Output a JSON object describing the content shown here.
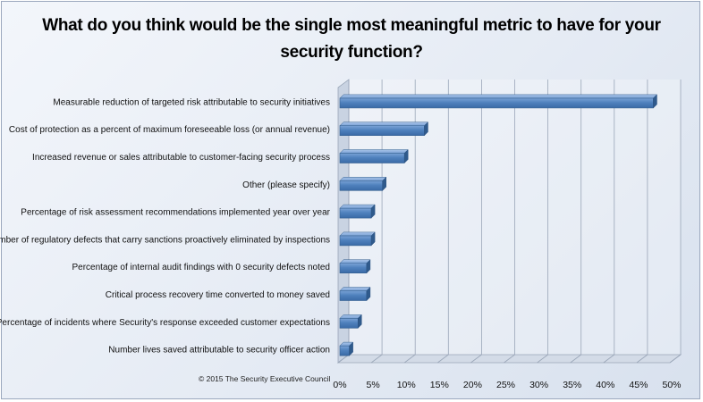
{
  "chart_data": {
    "type": "bar",
    "orientation": "horizontal",
    "title": "What do you think would be the single most meaningful metric to have for your security function?",
    "categories": [
      "Measurable reduction of targeted risk attributable to security initiatives",
      "Cost of protection as a percent of maximum foreseeable loss (or annual revenue)",
      "Increased revenue or sales attributable to customer-facing security process",
      "Other (please specify)",
      "Percentage of risk assessment recommendations implemented year over year",
      "Number of regulatory defects that carry sanctions proactively eliminated by inspections",
      "Percentage of internal audit findings with 0 security defects noted",
      "Critical process recovery time converted to money saved",
      "Percentage of incidents where Security's response exceeded customer expectations",
      "Number lives saved attributable to security officer action"
    ],
    "values": [
      47.5,
      13,
      10,
      6.7,
      5,
      5,
      4.3,
      4.3,
      3,
      1.7
    ],
    "xlim": [
      0,
      50
    ],
    "xticks": [
      0,
      5,
      10,
      15,
      20,
      25,
      30,
      35,
      40,
      45,
      50
    ],
    "xtick_labels": [
      "0%",
      "5%",
      "10%",
      "15%",
      "20%",
      "25%",
      "30%",
      "35%",
      "40%",
      "45%",
      "50%"
    ],
    "grid": true,
    "bar_color": "#4f81bd",
    "copyright": "© 2015 The Security Executive Council"
  }
}
